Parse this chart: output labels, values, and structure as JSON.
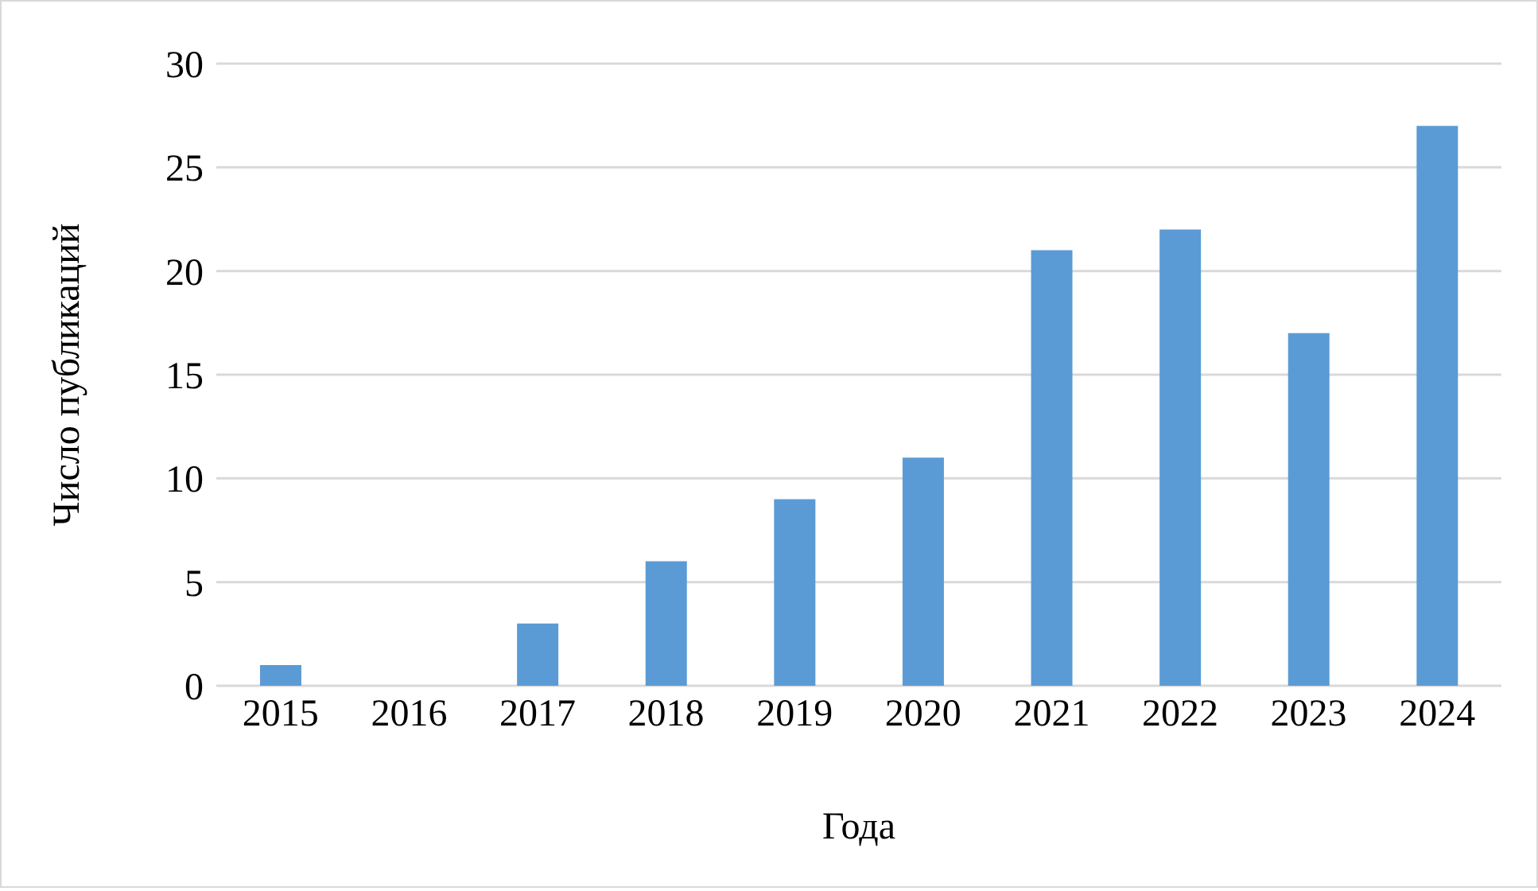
{
  "chart_data": {
    "type": "bar",
    "xlabel": "Года",
    "ylabel": "Число публикаций",
    "categories": [
      "2015",
      "2016",
      "2017",
      "2018",
      "2019",
      "2020",
      "2021",
      "2022",
      "2023",
      "2024"
    ],
    "values": [
      1,
      0,
      3,
      6,
      9,
      11,
      21,
      22,
      17,
      27
    ],
    "color": "#5b9bd5",
    "ylim": [
      0,
      30
    ],
    "yticks": [
      0,
      5,
      10,
      15,
      20,
      25,
      30
    ],
    "grid": "y",
    "legend": false
  }
}
